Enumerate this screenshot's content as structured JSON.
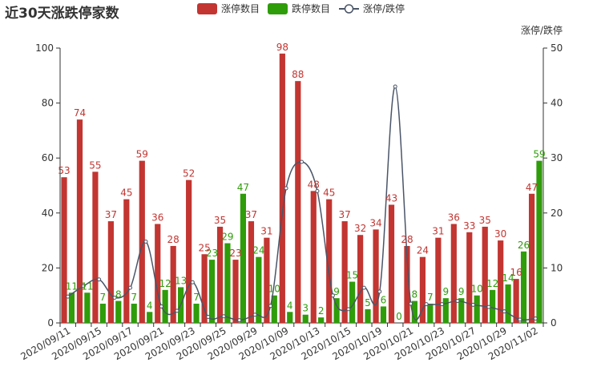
{
  "chart_data": {
    "type": "bar",
    "title": "近30天涨跌停家数",
    "y2label": "涨停/跌停",
    "ylim": [
      0,
      100
    ],
    "y2lim": [
      0,
      50
    ],
    "yticks": [
      0,
      20,
      40,
      60,
      80,
      100
    ],
    "y2ticks": [
      0,
      10,
      20,
      30,
      40,
      50
    ],
    "x_tick_labels": [
      "2020/09/11",
      "2020/09/15",
      "2020/09/17",
      "2020/09/21",
      "2020/09/23",
      "2020/09/25",
      "2020/09/29",
      "2020/10/09",
      "2020/10/13",
      "2020/10/15",
      "2020/10/19",
      "2020/10/21",
      "2020/10/23",
      "2020/10/27",
      "2020/10/29",
      "2020/11/02"
    ],
    "num_points": 31,
    "series": [
      {
        "name": "涨停数目",
        "type": "bar",
        "color": "#c23531",
        "values": [
          53,
          74,
          55,
          37,
          45,
          59,
          36,
          28,
          52,
          25,
          35,
          23,
          37,
          31,
          98,
          88,
          48,
          45,
          37,
          32,
          34,
          43,
          28,
          24,
          31,
          36,
          33,
          35,
          30,
          16,
          47
        ]
      },
      {
        "name": "跌停数目",
        "type": "bar",
        "color": "#2f9c0a",
        "values": [
          11,
          11,
          7,
          8,
          7,
          4,
          12,
          13,
          7,
          23,
          29,
          47,
          24,
          10,
          4,
          3,
          2,
          9,
          15,
          5,
          6,
          0,
          8,
          7,
          9,
          9,
          10,
          12,
          14,
          26,
          59
        ]
      },
      {
        "name": "涨停/跌停",
        "type": "line",
        "axis": "right",
        "color": "#4a5568",
        "values": [
          4.8,
          6.7,
          7.9,
          4.6,
          6.4,
          14.8,
          3.0,
          2.2,
          7.4,
          1.1,
          1.2,
          0.5,
          1.5,
          3.1,
          24.5,
          29.3,
          24.0,
          5.0,
          2.5,
          6.4,
          5.7,
          43.0,
          3.5,
          3.4,
          3.4,
          4.0,
          3.3,
          2.9,
          2.1,
          0.6,
          0.8
        ]
      }
    ],
    "legend_position": "top-center",
    "grid": false
  }
}
